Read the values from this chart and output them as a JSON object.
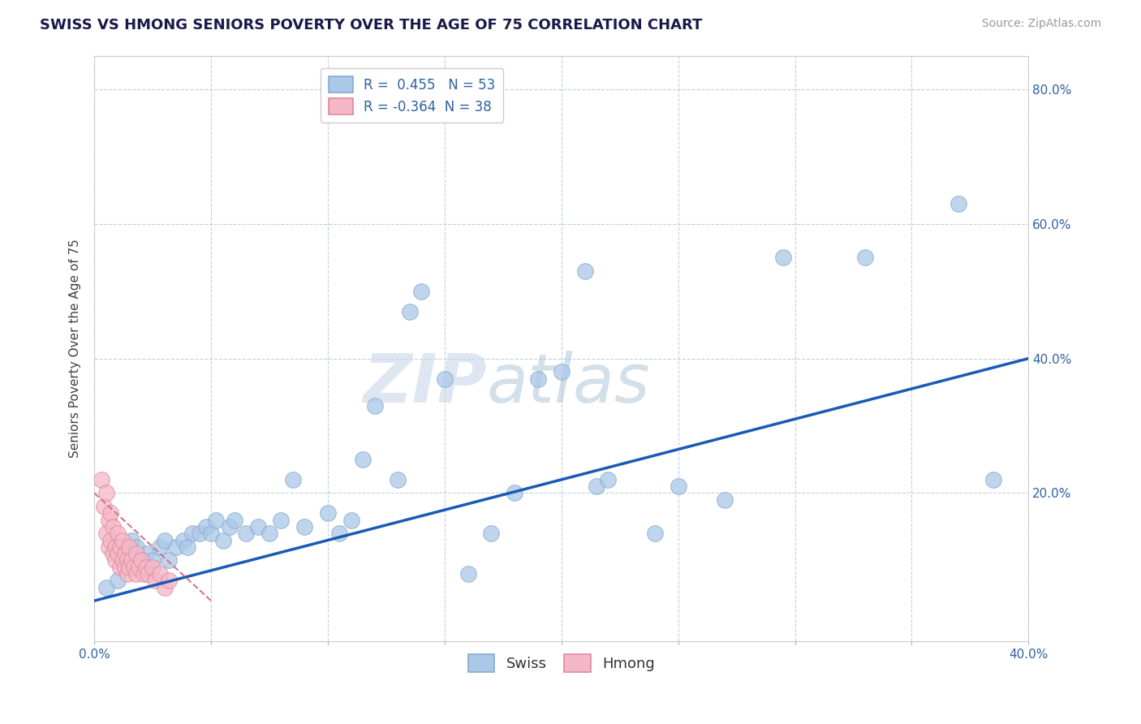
{
  "title": "SWISS VS HMONG SENIORS POVERTY OVER THE AGE OF 75 CORRELATION CHART",
  "source": "Source: ZipAtlas.com",
  "ylabel": "Seniors Poverty Over the Age of 75",
  "xlim": [
    0.0,
    0.4
  ],
  "ylim": [
    -0.02,
    0.85
  ],
  "plot_ylim": [
    0.0,
    0.85
  ],
  "xticks": [
    0.0,
    0.05,
    0.1,
    0.15,
    0.2,
    0.25,
    0.3,
    0.35,
    0.4
  ],
  "yticks": [
    0.0,
    0.2,
    0.4,
    0.6,
    0.8
  ],
  "ytick_labels": [
    "",
    "20.0%",
    "40.0%",
    "60.0%",
    "80.0%"
  ],
  "xtick_labels": [
    "0.0%",
    "",
    "",
    "",
    "",
    "",
    "",
    "",
    "40.0%"
  ],
  "swiss_r": 0.455,
  "swiss_n": 53,
  "hmong_r": -0.364,
  "hmong_n": 38,
  "swiss_color": "#aac8e8",
  "hmong_color": "#f5b8c8",
  "swiss_line_color": "#1a5ab5",
  "hmong_line_color": "#c87890",
  "watermark_zip": "ZIP",
  "watermark_atlas": "atlas",
  "swiss_x": [
    0.005,
    0.01,
    0.013,
    0.015,
    0.016,
    0.018,
    0.02,
    0.022,
    0.025,
    0.028,
    0.03,
    0.032,
    0.035,
    0.038,
    0.04,
    0.042,
    0.045,
    0.048,
    0.05,
    0.052,
    0.055,
    0.058,
    0.06,
    0.065,
    0.07,
    0.075,
    0.08,
    0.085,
    0.09,
    0.1,
    0.105,
    0.11,
    0.115,
    0.12,
    0.13,
    0.135,
    0.14,
    0.15,
    0.16,
    0.17,
    0.18,
    0.19,
    0.2,
    0.21,
    0.215,
    0.22,
    0.24,
    0.25,
    0.27,
    0.295,
    0.33,
    0.37,
    0.385
  ],
  "swiss_y": [
    0.06,
    0.07,
    0.1,
    0.09,
    0.13,
    0.12,
    0.1,
    0.11,
    0.1,
    0.12,
    0.13,
    0.1,
    0.12,
    0.13,
    0.12,
    0.14,
    0.14,
    0.15,
    0.14,
    0.16,
    0.13,
    0.15,
    0.16,
    0.14,
    0.15,
    0.14,
    0.16,
    0.22,
    0.15,
    0.17,
    0.14,
    0.16,
    0.25,
    0.33,
    0.22,
    0.47,
    0.5,
    0.37,
    0.08,
    0.14,
    0.2,
    0.37,
    0.38,
    0.53,
    0.21,
    0.22,
    0.14,
    0.21,
    0.19,
    0.55,
    0.55,
    0.63,
    0.22
  ],
  "hmong_x": [
    0.003,
    0.004,
    0.005,
    0.005,
    0.006,
    0.006,
    0.007,
    0.007,
    0.008,
    0.008,
    0.009,
    0.009,
    0.01,
    0.01,
    0.011,
    0.011,
    0.012,
    0.012,
    0.013,
    0.013,
    0.014,
    0.014,
    0.015,
    0.015,
    0.016,
    0.017,
    0.018,
    0.018,
    0.019,
    0.02,
    0.021,
    0.022,
    0.023,
    0.025,
    0.026,
    0.028,
    0.03,
    0.032
  ],
  "hmong_y": [
    0.22,
    0.18,
    0.14,
    0.2,
    0.12,
    0.16,
    0.13,
    0.17,
    0.11,
    0.15,
    0.12,
    0.1,
    0.11,
    0.14,
    0.09,
    0.12,
    0.1,
    0.13,
    0.09,
    0.11,
    0.1,
    0.08,
    0.09,
    0.12,
    0.1,
    0.09,
    0.08,
    0.11,
    0.09,
    0.1,
    0.08,
    0.09,
    0.08,
    0.09,
    0.07,
    0.08,
    0.06,
    0.07
  ],
  "swiss_line_x": [
    0.0,
    0.4
  ],
  "swiss_line_y": [
    0.04,
    0.4
  ],
  "hmong_line_x": [
    0.0,
    0.05
  ],
  "hmong_line_y": [
    0.2,
    0.04
  ]
}
